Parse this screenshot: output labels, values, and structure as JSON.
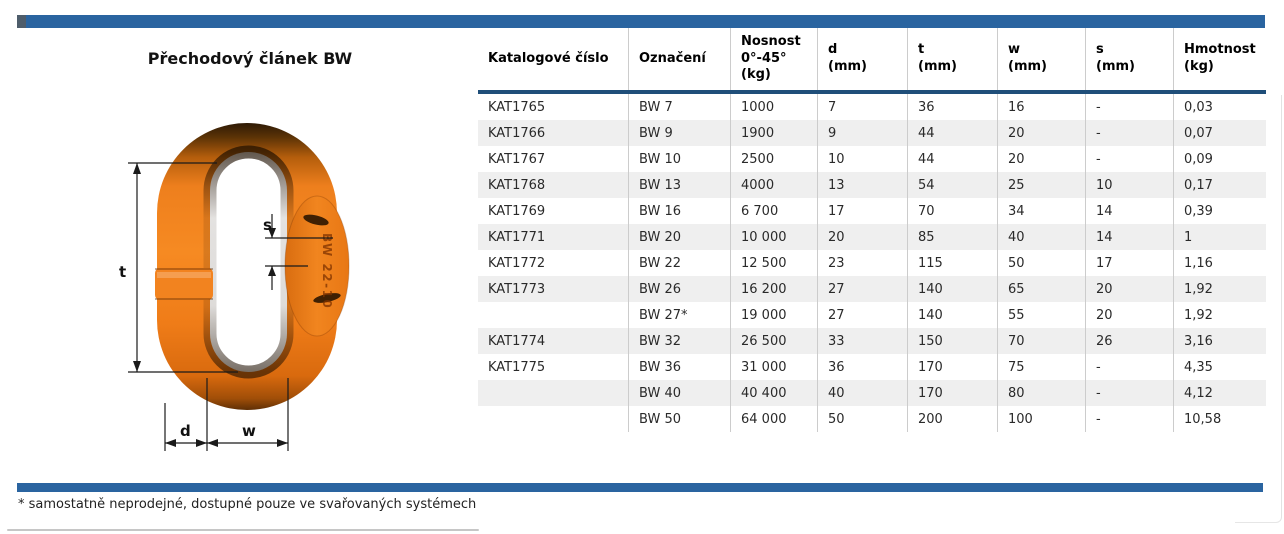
{
  "page": {
    "title": "Přechodový článek BW",
    "footnote": "* samostatně neprodejné, dostupné pouze ve svařovaných systémech"
  },
  "colors": {
    "bar_blue": "#2a64a0",
    "bar_cap": "#4e5d6b",
    "header_rule": "#1f4e79",
    "row_alt": "#efefef",
    "column_separator": "#cccccc",
    "text": "#1f1f1f",
    "link_orange": "#f08020"
  },
  "diagram": {
    "labels": {
      "t": "t",
      "s": "s",
      "d": "d",
      "w": "w"
    },
    "embossed_text": "BW 22-10"
  },
  "table": {
    "header": [
      {
        "lines": [
          "Katalogové číslo"
        ]
      },
      {
        "lines": [
          "Označení"
        ]
      },
      {
        "lines": [
          "Nosnost",
          "0°-45°",
          "(kg)"
        ]
      },
      {
        "lines": [
          "d",
          "(mm)"
        ]
      },
      {
        "lines": [
          "t",
          "(mm)"
        ]
      },
      {
        "lines": [
          "w",
          "(mm)"
        ]
      },
      {
        "lines": [
          "s",
          "(mm)"
        ]
      },
      {
        "lines": [
          "Hmotnost",
          "(kg)"
        ]
      }
    ],
    "rows": [
      [
        "KAT1765",
        "BW 7",
        "1000",
        "7",
        "36",
        "16",
        "-",
        "0,03"
      ],
      [
        "KAT1766",
        "BW 9",
        "1900",
        "9",
        "44",
        "20",
        "-",
        "0,07"
      ],
      [
        "KAT1767",
        "BW 10",
        "2500",
        "10",
        "44",
        "20",
        "-",
        "0,09"
      ],
      [
        "KAT1768",
        "BW 13",
        "4000",
        "13",
        "54",
        "25",
        "10",
        "0,17"
      ],
      [
        "KAT1769",
        "BW 16",
        "6 700",
        "17",
        "70",
        "34",
        "14",
        "0,39"
      ],
      [
        "KAT1771",
        "BW 20",
        "10 000",
        "20",
        "85",
        "40",
        "14",
        "1"
      ],
      [
        "KAT1772",
        "BW 22",
        "12 500",
        "23",
        "115",
        "50",
        "17",
        "1,16"
      ],
      [
        "KAT1773",
        "BW 26",
        "16 200",
        "27",
        "140",
        "65",
        "20",
        "1,92"
      ],
      [
        "",
        "BW 27*",
        "19 000",
        "27",
        "140",
        "55",
        "20",
        "1,92"
      ],
      [
        "KAT1774",
        "BW 32",
        "26 500",
        "33",
        "150",
        "70",
        "26",
        "3,16"
      ],
      [
        "KAT1775",
        "BW 36",
        "31 000",
        "36",
        "170",
        "75",
        "-",
        "4,35"
      ],
      [
        "",
        "BW 40",
        "40 400",
        "40",
        "170",
        "80",
        "-",
        "4,12"
      ],
      [
        "",
        "BW 50",
        "64 000",
        "50",
        "200",
        "100",
        "-",
        "10,58"
      ]
    ]
  }
}
